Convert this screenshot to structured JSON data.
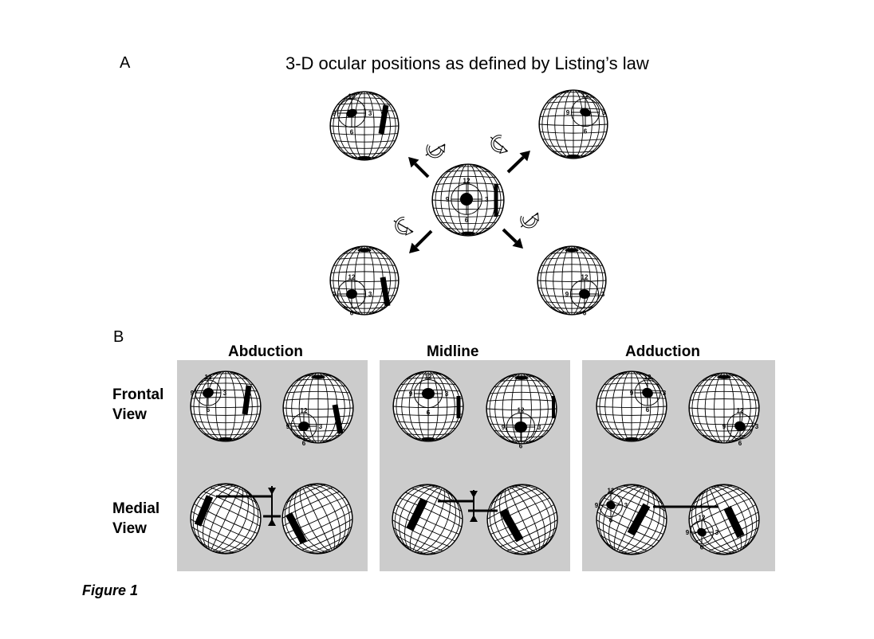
{
  "panel_a": {
    "letter": "A",
    "title": "3-D ocular positions as defined by Listing’s law"
  },
  "panel_b": {
    "letter": "B",
    "columns": [
      "Abduction",
      "Midline",
      "Adduction"
    ],
    "rows": [
      {
        "line1": "Frontal",
        "line2": "View"
      },
      {
        "line1": "Medial",
        "line2": "View"
      }
    ]
  },
  "eye_labels": {
    "top": "12",
    "left": "9",
    "right": "3",
    "bottom": "6"
  },
  "caption": "Figure 1",
  "colors": {
    "panel_gray": "#cccccc",
    "ink": "#000000",
    "background": "#ffffff"
  },
  "icons": [
    "globe-eye-icon",
    "direction-arrow-icon",
    "rotation-axis-icon"
  ]
}
